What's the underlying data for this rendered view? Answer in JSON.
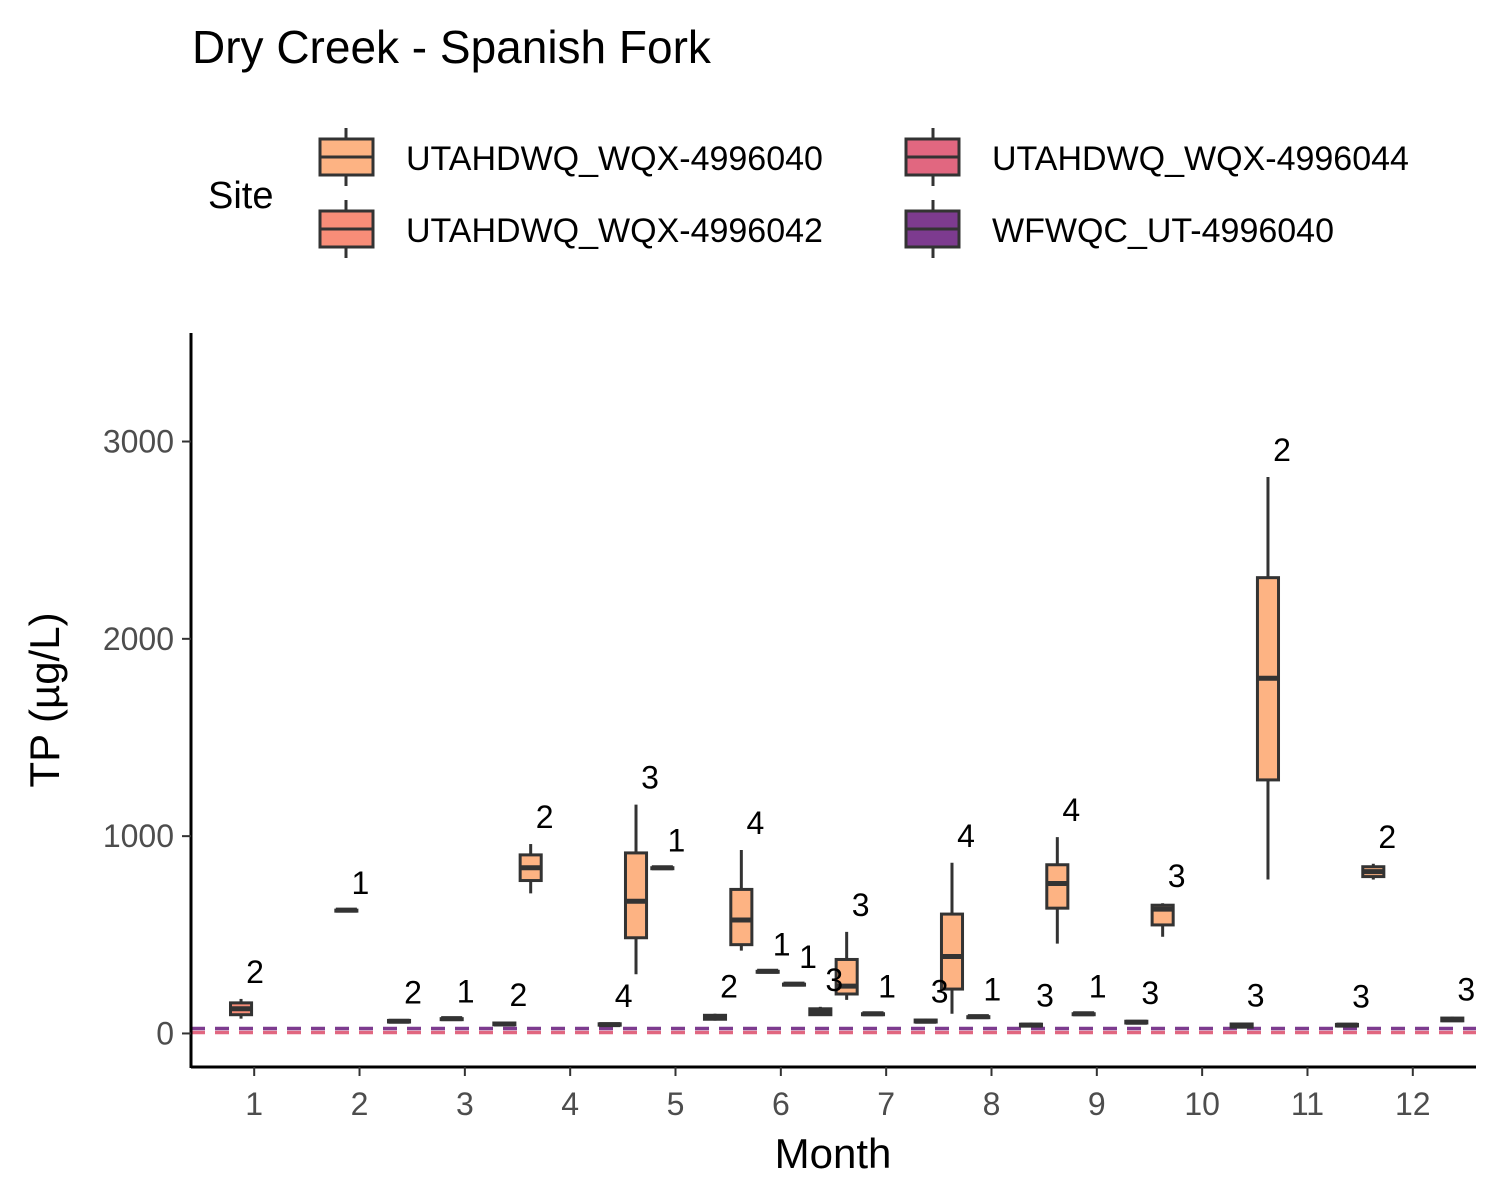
{
  "chart_data": {
    "type": "boxplot",
    "title": "Dry Creek - Spanish Fork",
    "xlabel": "Month",
    "ylabel": "TP (µg/L)",
    "ylim": [
      -170,
      3550
    ],
    "yticks": [
      0,
      1000,
      2000,
      3000
    ],
    "categories": [
      "1",
      "2",
      "3",
      "4",
      "5",
      "6",
      "7",
      "8",
      "9",
      "10",
      "11",
      "12"
    ],
    "legend": {
      "title": "Site",
      "position": "top",
      "entries": [
        {
          "name": "UTAHDWQ_WQX-4996040",
          "color": "#FDB383"
        },
        {
          "name": "UTAHDWQ_WQX-4996044",
          "color": "#E16780"
        },
        {
          "name": "UTAHDWQ_WQX-4996042",
          "color": "#F88D78"
        },
        {
          "name": "WFWQC_UT-4996040",
          "color": "#7D3B8F"
        }
      ]
    },
    "series": [
      {
        "name": "UTAHDWQ_WQX-4996040",
        "color": "#FDB383",
        "boxes": [
          {
            "month": 4,
            "min": 710,
            "q1": 775,
            "median": 840,
            "q3": 905,
            "max": 960,
            "n": "2"
          },
          {
            "month": 5,
            "min": 300,
            "q1": 485,
            "median": 670,
            "q3": 915,
            "max": 1160,
            "n": "3"
          },
          {
            "month": 6,
            "min": 420,
            "q1": 450,
            "median": 575,
            "q3": 730,
            "max": 930,
            "n": "4"
          },
          {
            "month": 7,
            "min": 170,
            "q1": 200,
            "median": 240,
            "q3": 375,
            "max": 515,
            "n": "3"
          },
          {
            "month": 8,
            "min": 100,
            "q1": 225,
            "median": 390,
            "q3": 605,
            "max": 865,
            "n": "4"
          },
          {
            "month": 9,
            "min": 455,
            "q1": 635,
            "median": 760,
            "q3": 855,
            "max": 995,
            "n": "4"
          },
          {
            "month": 10,
            "min": 490,
            "q1": 550,
            "median": 630,
            "q3": 650,
            "max": 660,
            "n": "3"
          },
          {
            "month": 11,
            "min": 780,
            "q1": 1285,
            "median": 1800,
            "q3": 2310,
            "max": 2820,
            "n": "2"
          },
          {
            "month": 12,
            "min": 780,
            "q1": 795,
            "median": 820,
            "q3": 845,
            "max": 860,
            "n": "2"
          }
        ]
      },
      {
        "name": "UTAHDWQ_WQX-4996042",
        "color": "#F88D78",
        "boxes": [
          {
            "month": 1,
            "min": 75,
            "q1": 95,
            "median": 125,
            "q3": 155,
            "max": 175,
            "n": "2"
          },
          {
            "month": 2,
            "min": 625,
            "q1": 625,
            "median": 625,
            "q3": 625,
            "max": 625,
            "n": "1"
          },
          {
            "month": 3,
            "min": 75,
            "q1": 75,
            "median": 75,
            "q3": 75,
            "max": 75,
            "n": "1"
          },
          {
            "month": 5,
            "min": 840,
            "q1": 840,
            "median": 840,
            "q3": 840,
            "max": 840,
            "n": "1"
          },
          {
            "month": 6,
            "min": 315,
            "q1": 315,
            "median": 315,
            "q3": 315,
            "max": 315,
            "n": "1"
          },
          {
            "month": 7,
            "min": 100,
            "q1": 100,
            "median": 100,
            "q3": 100,
            "max": 100,
            "n": "1"
          },
          {
            "month": 8,
            "min": 85,
            "q1": 85,
            "median": 85,
            "q3": 85,
            "max": 85,
            "n": "1"
          },
          {
            "month": 9,
            "min": 100,
            "q1": 100,
            "median": 100,
            "q3": 100,
            "max": 100,
            "n": "1"
          }
        ]
      },
      {
        "name": "UTAHDWQ_WQX-4996044",
        "color": "#E16780",
        "boxes": [
          {
            "month": 6,
            "min": 250,
            "q1": 250,
            "median": 250,
            "q3": 250,
            "max": 250,
            "n": "1"
          }
        ]
      },
      {
        "name": "WFWQC_UT-4996040",
        "color": "#7D3B8F",
        "boxes": [
          {
            "month": 2,
            "min": 55,
            "q1": 58,
            "median": 62,
            "q3": 66,
            "max": 70,
            "n": "2"
          },
          {
            "month": 3,
            "min": 40,
            "q1": 44,
            "median": 48,
            "q3": 53,
            "max": 58,
            "n": "2"
          },
          {
            "month": 4,
            "min": 38,
            "q1": 42,
            "median": 45,
            "q3": 49,
            "max": 53,
            "n": "4"
          },
          {
            "month": 5,
            "min": 65,
            "q1": 72,
            "median": 82,
            "q3": 92,
            "max": 100,
            "n": "2"
          },
          {
            "month": 6,
            "min": 90,
            "q1": 95,
            "median": 110,
            "q3": 125,
            "max": 135,
            "n": "3"
          },
          {
            "month": 7,
            "min": 55,
            "q1": 58,
            "median": 62,
            "q3": 68,
            "max": 75,
            "n": "3"
          },
          {
            "month": 8,
            "min": 35,
            "q1": 38,
            "median": 42,
            "q3": 47,
            "max": 55,
            "n": "3"
          },
          {
            "month": 9,
            "min": 50,
            "q1": 53,
            "median": 57,
            "q3": 62,
            "max": 68,
            "n": "3"
          },
          {
            "month": 10,
            "min": 25,
            "q1": 32,
            "median": 40,
            "q3": 48,
            "max": 55,
            "n": "3"
          },
          {
            "month": 11,
            "min": 35,
            "q1": 38,
            "median": 42,
            "q3": 46,
            "max": 50,
            "n": "3"
          },
          {
            "month": 12,
            "min": 60,
            "q1": 64,
            "median": 70,
            "q3": 78,
            "max": 85,
            "n": "3"
          }
        ]
      }
    ],
    "reference_lines": [
      {
        "value": 25,
        "color": "#7D3B8F",
        "style": "dashed"
      },
      {
        "value": 5,
        "color": "#E16780",
        "style": "dashed"
      }
    ]
  }
}
